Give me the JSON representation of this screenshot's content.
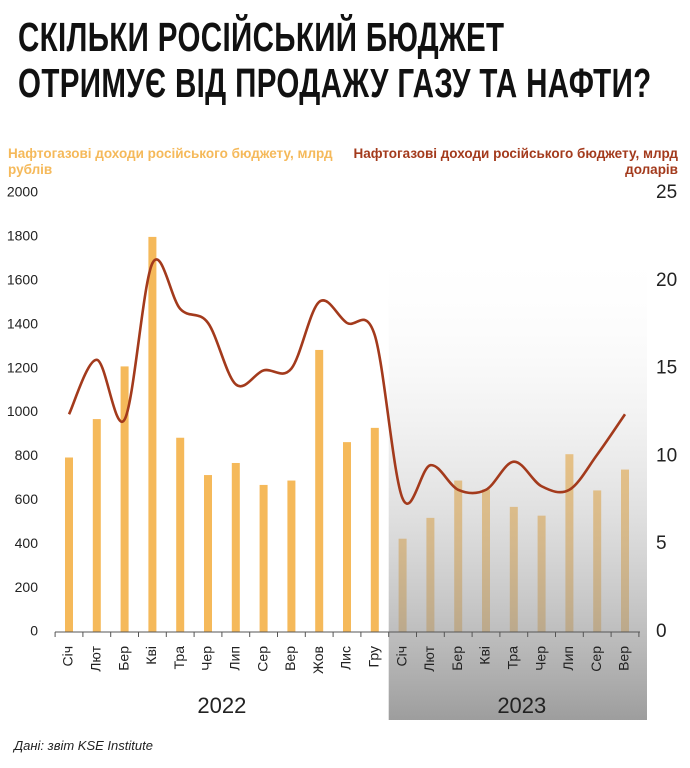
{
  "chart_data": {
    "type": "bar",
    "title": "СКІЛЬКИ РОСІЙСЬКИЙ БЮДЖЕТ ОТРИМУЄ ВІД ПРОДАЖУ ГАЗУ ТА НАФТИ?",
    "categories": [
      "Січ",
      "Лют",
      "Бер",
      "Кві",
      "Тра",
      "Чер",
      "Лип",
      "Сер",
      "Вер",
      "Жов",
      "Лис",
      "Гру",
      "Січ",
      "Лют",
      "Бер",
      "Кві",
      "Тра",
      "Чер",
      "Лип",
      "Сер",
      "Вер"
    ],
    "year_labels": [
      "2022",
      "2023"
    ],
    "series": [
      {
        "name": "Нафтогазові доходи російського бюджету, млрд рублів",
        "type": "bar",
        "color": "#f5b95a",
        "values": [
          795,
          970,
          1210,
          1800,
          885,
          715,
          770,
          670,
          690,
          1285,
          865,
          930,
          425,
          520,
          690,
          650,
          570,
          530,
          810,
          645,
          740
        ]
      },
      {
        "name": "Нафтогазові доходи російського бюджету, млрд доларів",
        "type": "line",
        "axis": "y2",
        "color": "#a33a1c",
        "values": [
          12.4,
          15.5,
          12.1,
          21.0,
          18.4,
          17.6,
          14.1,
          14.9,
          15.0,
          18.8,
          17.6,
          16.9,
          7.6,
          9.5,
          8.1,
          8.1,
          9.7,
          8.3,
          8.1,
          10.1,
          12.4
        ]
      }
    ],
    "ylim": [
      0,
      2000
    ],
    "yticks": [
      0,
      200,
      400,
      600,
      800,
      1000,
      1200,
      1400,
      1600,
      1800,
      2000
    ],
    "y2lim": [
      0,
      25
    ],
    "y2ticks": [
      0,
      5,
      10,
      15,
      20,
      25
    ],
    "source": "Дані: звіт KSE Institute"
  }
}
